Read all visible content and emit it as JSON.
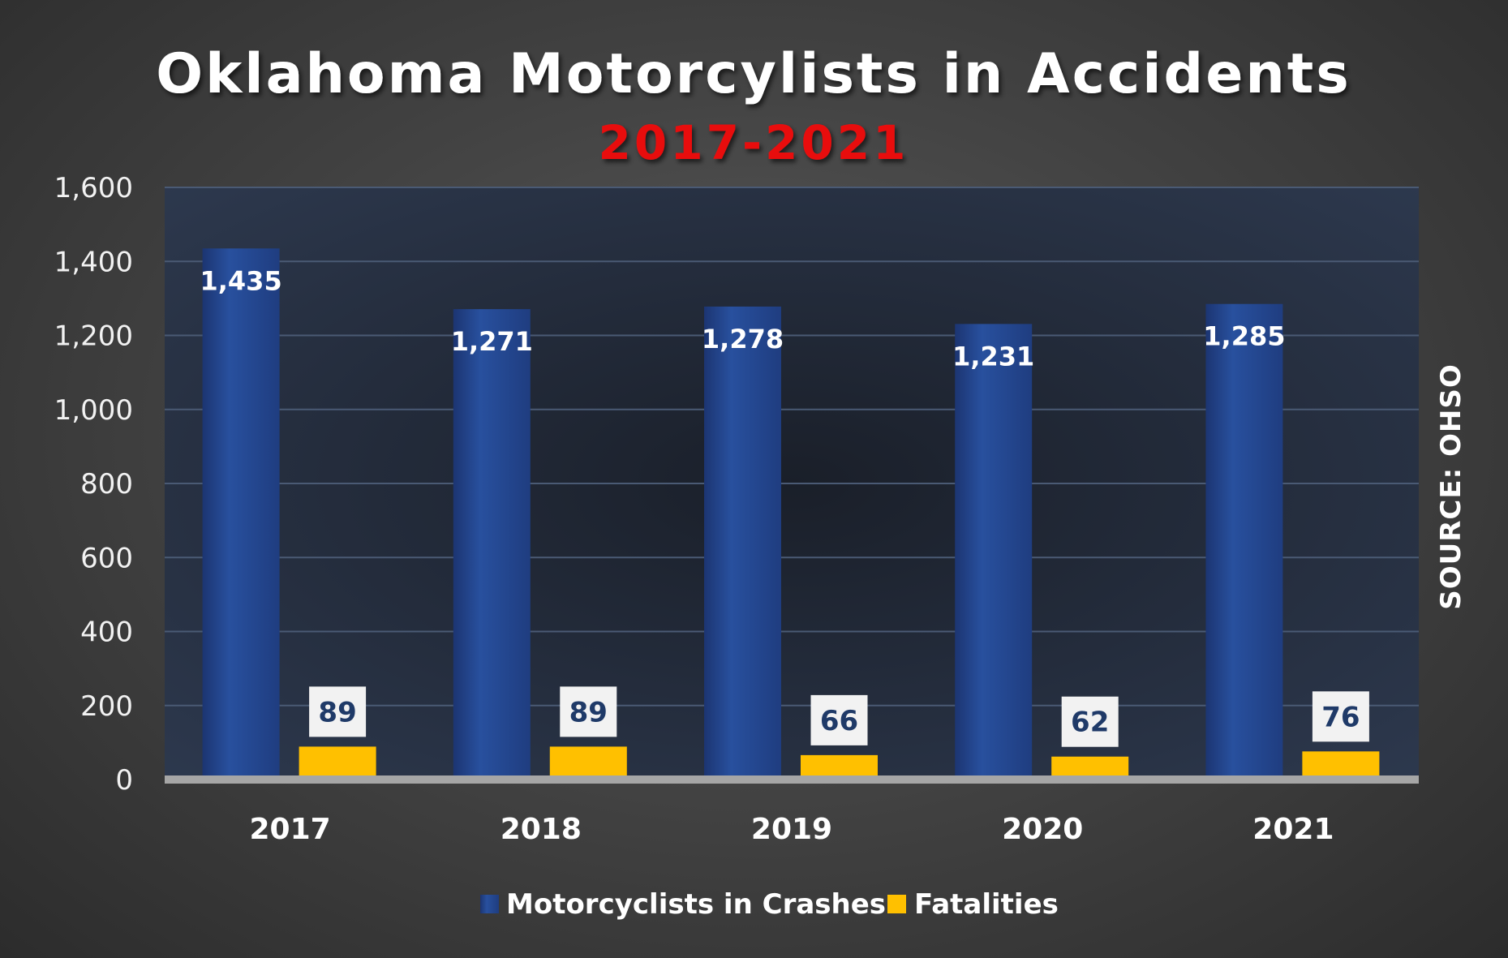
{
  "chart_data": {
    "type": "bar",
    "title": "Oklahoma Motorcylists in Accidents",
    "subtitle": "2017-2021",
    "categories": [
      "2017",
      "2018",
      "2019",
      "2020",
      "2021"
    ],
    "series": [
      {
        "name": "Motorcyclists in Crashes",
        "values": [
          1435,
          1271,
          1278,
          1231,
          1285
        ],
        "labels": [
          "1,435",
          "1,271",
          "1,278",
          "1,231",
          "1,285"
        ],
        "color": "#25478f"
      },
      {
        "name": "Fatalities",
        "values": [
          89,
          89,
          66,
          62,
          76
        ],
        "labels": [
          "89",
          "89",
          "66",
          "62",
          "76"
        ],
        "color": "#ffc000"
      }
    ],
    "ylim": [
      0,
      1600
    ],
    "yticks": [
      0,
      200,
      400,
      600,
      800,
      1000,
      1200,
      1400,
      1600
    ],
    "ytick_labels": [
      "0",
      "200",
      "400",
      "600",
      "800",
      "1,000",
      "1,200",
      "1,400",
      "1,600"
    ],
    "grid": true,
    "legend": "bottom",
    "subtitle_color": "#e81010",
    "source": "SOURCE: OHSO"
  }
}
